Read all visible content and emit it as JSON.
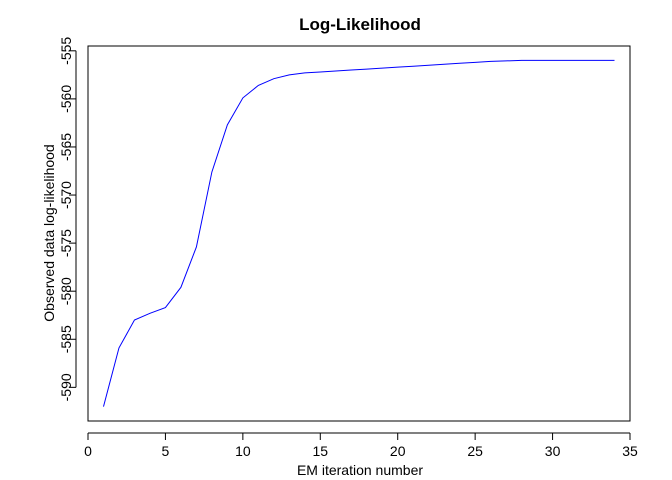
{
  "chart_data": {
    "type": "line",
    "title": "Log-Likelihood",
    "xlabel": "EM iteration number",
    "ylabel": "Observed data log-likelihood",
    "xlim": [
      0,
      35
    ],
    "ylim": [
      -593.5,
      -554.5
    ],
    "xticks": [
      0,
      5,
      10,
      15,
      20,
      25,
      30,
      35
    ],
    "yticks": [
      -590,
      -585,
      -580,
      -575,
      -570,
      -565,
      -560,
      -555
    ],
    "grid": false,
    "line_color": "#0000ff",
    "x": [
      1,
      2,
      3,
      4,
      5,
      6,
      7,
      8,
      9,
      10,
      11,
      12,
      13,
      14,
      15,
      16,
      17,
      18,
      19,
      20,
      21,
      22,
      23,
      24,
      25,
      26,
      27,
      28,
      29,
      30,
      31,
      32,
      33,
      34
    ],
    "y": [
      -592.0,
      -585.9,
      -583.0,
      -582.3,
      -581.7,
      -579.6,
      -575.4,
      -567.6,
      -562.7,
      -559.9,
      -558.6,
      -557.9,
      -557.5,
      -557.3,
      -557.2,
      -557.1,
      -557.0,
      -556.9,
      -556.8,
      -556.7,
      -556.6,
      -556.5,
      -556.4,
      -556.3,
      -556.2,
      -556.1,
      -556.05,
      -556.0,
      -556.0,
      -556.0,
      -556.0,
      -556.0,
      -556.0,
      -556.0
    ]
  }
}
